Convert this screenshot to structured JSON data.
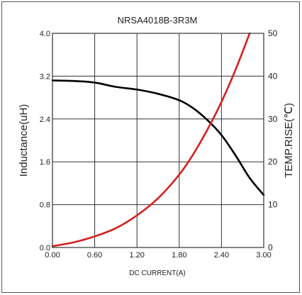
{
  "chart_data": {
    "type": "line",
    "title": "NRSA4018B-3R3M",
    "xlabel": "DC CURRENT(A)",
    "ylabel": "Inductance(uH)",
    "y2label": "TEMP.RISE(℃)",
    "xlim": [
      0,
      3
    ],
    "ylim": [
      0,
      4
    ],
    "y2lim": [
      0,
      50
    ],
    "x_ticks": [
      "0.00",
      "0.60",
      "1.20",
      "1.80",
      "2.40",
      "3.00"
    ],
    "y_ticks": [
      "0.0",
      "0.8",
      "1.6",
      "2.4",
      "3.2",
      "4.0"
    ],
    "y2_ticks": [
      "0",
      "10",
      "20",
      "30",
      "40",
      "50"
    ],
    "grid": true,
    "colors": {
      "inductance": "#000000",
      "temp": "#d42020",
      "frame": "#333333",
      "grid": "#333333"
    },
    "series": [
      {
        "axis": "left",
        "points": [
          [
            0,
            3.12
          ],
          [
            0.3,
            3.11
          ],
          [
            0.6,
            3.08
          ],
          [
            0.9,
            3.0
          ],
          [
            1.2,
            2.95
          ],
          [
            1.5,
            2.87
          ],
          [
            1.8,
            2.75
          ],
          [
            2.0,
            2.6
          ],
          [
            2.2,
            2.38
          ],
          [
            2.4,
            2.1
          ],
          [
            2.6,
            1.72
          ],
          [
            2.8,
            1.3
          ],
          [
            3.0,
            0.98
          ]
        ]
      },
      {
        "axis": "right",
        "points": [
          [
            0,
            0.3
          ],
          [
            0.3,
            1.2
          ],
          [
            0.6,
            2.6
          ],
          [
            0.9,
            4.5
          ],
          [
            1.2,
            7.5
          ],
          [
            1.5,
            11.5
          ],
          [
            1.8,
            17.0
          ],
          [
            2.0,
            21.8
          ],
          [
            2.2,
            27.5
          ],
          [
            2.4,
            34.0
          ],
          [
            2.6,
            41.5
          ],
          [
            2.8,
            50.0
          ]
        ]
      }
    ]
  }
}
